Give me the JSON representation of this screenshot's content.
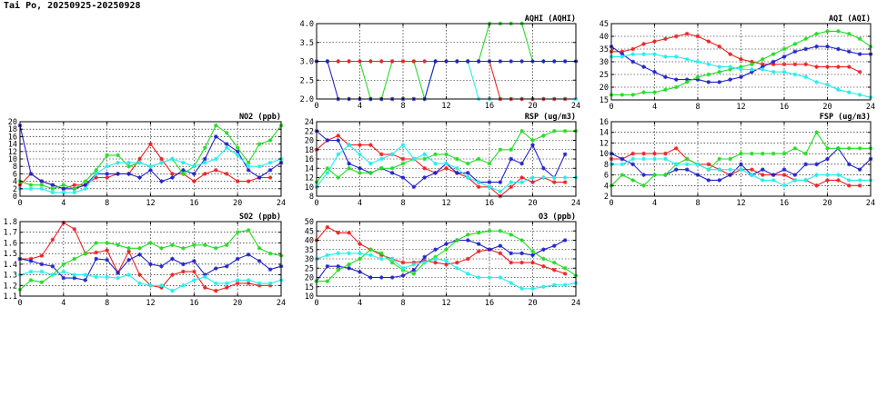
{
  "title": "Tai Po, 20250925-20250928",
  "colors": {
    "red": "#ee2222",
    "green": "#22dd22",
    "blue": "#2222cc",
    "cyan": "#22eeee"
  },
  "chart_data": [
    {
      "id": "no2",
      "type": "line",
      "title": "NO2 (ppb)",
      "xlim": [
        0,
        24
      ],
      "xticks": [
        0,
        4,
        8,
        12,
        16,
        20,
        24
      ],
      "ylim": [
        0,
        20
      ],
      "yticks": [
        0,
        2,
        4,
        6,
        8,
        10,
        12,
        14,
        16,
        18,
        20
      ],
      "series": [
        {
          "color": "red",
          "marker": "star",
          "values": [
            3,
            6,
            4,
            3,
            2,
            3,
            3,
            5,
            5,
            6,
            6,
            10,
            14,
            10,
            6,
            6,
            4,
            6,
            7,
            6,
            4,
            4,
            5,
            5
          ]
        },
        {
          "color": "blue",
          "marker": "star",
          "values": [
            19,
            6,
            4,
            3,
            2,
            2,
            3,
            6,
            6,
            6,
            6,
            5,
            7,
            4,
            5,
            7,
            6,
            10,
            16,
            14,
            12,
            7,
            5,
            7,
            9
          ]
        },
        {
          "color": "green",
          "marker": "star",
          "values": [
            4,
            3,
            3,
            2,
            3,
            2,
            4,
            7,
            11,
            11,
            8,
            9,
            8,
            9,
            10,
            6,
            8,
            13,
            19,
            17,
            13,
            9,
            14,
            15,
            19
          ]
        },
        {
          "color": "cyan",
          "marker": "star",
          "values": [
            2,
            2,
            2,
            1,
            1,
            1,
            2,
            6,
            8,
            9,
            9,
            9,
            8,
            9,
            10,
            9,
            8,
            9,
            10,
            13,
            11,
            8,
            8,
            9,
            10
          ]
        }
      ]
    },
    {
      "id": "so2",
      "type": "line",
      "title": "SO2 (ppb)",
      "xlim": [
        0,
        24
      ],
      "xticks": [
        0,
        4,
        8,
        12,
        16,
        20,
        24
      ],
      "ylim": [
        1.1,
        1.8
      ],
      "yticks": [
        1.1,
        1.2,
        1.3,
        1.4,
        1.5,
        1.6,
        1.7,
        1.8
      ],
      "series": [
        {
          "color": "red",
          "marker": "star",
          "values": [
            1.45,
            1.45,
            1.48,
            1.63,
            1.79,
            1.73,
            1.5,
            1.51,
            1.53,
            1.32,
            1.52,
            1.3,
            1.2,
            1.18,
            1.3,
            1.33,
            1.33,
            1.18,
            1.15,
            1.18,
            1.22,
            1.22,
            1.2,
            1.2
          ]
        },
        {
          "color": "blue",
          "marker": "star",
          "values": [
            1.45,
            1.43,
            1.4,
            1.38,
            1.27,
            1.27,
            1.25,
            1.45,
            1.44,
            1.32,
            1.44,
            1.49,
            1.4,
            1.38,
            1.45,
            1.4,
            1.43,
            1.3,
            1.36,
            1.38,
            1.45,
            1.49,
            1.43,
            1.35,
            1.38
          ]
        },
        {
          "color": "green",
          "marker": "star",
          "values": [
            1.16,
            1.25,
            1.23,
            1.3,
            1.4,
            1.45,
            1.5,
            1.6,
            1.6,
            1.58,
            1.55,
            1.55,
            1.6,
            1.55,
            1.58,
            1.55,
            1.58,
            1.58,
            1.55,
            1.58,
            1.7,
            1.72,
            1.55,
            1.5,
            1.48
          ]
        },
        {
          "color": "cyan",
          "marker": "star",
          "values": [
            1.3,
            1.33,
            1.33,
            1.3,
            1.33,
            1.3,
            1.3,
            1.28,
            1.28,
            1.27,
            1.3,
            1.22,
            1.2,
            1.2,
            1.15,
            1.2,
            1.25,
            1.28,
            1.22,
            1.22,
            1.25,
            1.25,
            1.22,
            1.22,
            1.25
          ]
        }
      ]
    },
    {
      "id": "aqhi",
      "type": "line",
      "title": "AQHI (AQHI)",
      "xlim": [
        0,
        24
      ],
      "xticks": [
        0,
        4,
        8,
        12,
        16,
        20,
        24
      ],
      "ylim": [
        2,
        4
      ],
      "yticks": [
        2.0,
        2.5,
        3.0,
        3.5,
        4.0
      ],
      "series": [
        {
          "color": "cyan",
          "marker": "star",
          "values": [
            3,
            3,
            3,
            3,
            3,
            3,
            3,
            3,
            3,
            3,
            3,
            3,
            3,
            3,
            3,
            2,
            2,
            2,
            2,
            2,
            2,
            2,
            2,
            2,
            2
          ]
        },
        {
          "color": "green",
          "marker": "star",
          "values": [
            3,
            3,
            3,
            3,
            3,
            2,
            2,
            3,
            3,
            3,
            2,
            3,
            3,
            3,
            3,
            3,
            4,
            4,
            4,
            4,
            3,
            3,
            3,
            3,
            3
          ]
        },
        {
          "color": "red",
          "marker": "star",
          "values": [
            3,
            3,
            3,
            3,
            3,
            3,
            3,
            3,
            3,
            3,
            3,
            3,
            3,
            3,
            3,
            3,
            3,
            2,
            2,
            2,
            2,
            2,
            2,
            2
          ]
        },
        {
          "color": "blue",
          "marker": "star",
          "values": [
            3,
            3,
            2,
            2,
            2,
            2,
            2,
            2,
            2,
            2,
            2,
            3,
            3,
            3,
            3,
            3,
            3,
            3,
            3,
            3,
            3,
            3,
            3,
            3,
            3
          ]
        }
      ]
    },
    {
      "id": "rsp",
      "type": "line",
      "title": "RSP (ug/m3)",
      "xlim": [
        0,
        24
      ],
      "xticks": [
        0,
        4,
        8,
        12,
        16,
        20,
        24
      ],
      "ylim": [
        8,
        24
      ],
      "yticks": [
        8,
        10,
        12,
        14,
        16,
        18,
        20,
        22,
        24
      ],
      "series": [
        {
          "color": "red",
          "marker": "star",
          "values": [
            18,
            20,
            21,
            19,
            19,
            19,
            17,
            17,
            16,
            16,
            14,
            13,
            14,
            13,
            12,
            10,
            10,
            8,
            10,
            12,
            11,
            12,
            11,
            11
          ]
        },
        {
          "color": "blue",
          "marker": "star",
          "values": [
            22,
            20,
            20,
            15,
            14,
            13,
            14,
            13,
            12,
            10,
            12,
            13,
            15,
            13,
            13,
            11,
            11,
            11,
            16,
            15,
            19,
            14,
            12,
            17
          ]
        },
        {
          "color": "green",
          "marker": "star",
          "values": [
            11,
            14,
            12,
            14,
            13,
            13,
            14,
            14,
            15,
            16,
            16,
            17,
            17,
            16,
            15,
            16,
            15,
            18,
            18,
            22,
            20,
            21,
            22,
            22,
            22
          ]
        },
        {
          "color": "cyan",
          "marker": "star",
          "values": [
            10,
            13,
            17,
            19,
            17,
            15,
            16,
            17,
            19,
            16,
            17,
            15,
            15,
            14,
            12,
            11,
            10,
            9,
            11,
            11,
            12,
            12,
            12,
            12,
            12
          ]
        }
      ]
    },
    {
      "id": "o3",
      "type": "line",
      "title": "O3 (ppb)",
      "xlim": [
        0,
        24
      ],
      "xticks": [
        0,
        4,
        8,
        12,
        16,
        20,
        24
      ],
      "ylim": [
        10,
        50
      ],
      "yticks": [
        10,
        15,
        20,
        25,
        30,
        35,
        40,
        45,
        50
      ],
      "series": [
        {
          "color": "red",
          "marker": "star",
          "values": [
            40,
            47,
            44,
            44,
            38,
            35,
            32,
            30,
            28,
            28,
            29,
            28,
            27,
            28,
            30,
            34,
            35,
            33,
            28,
            28,
            28,
            26,
            24,
            22
          ]
        },
        {
          "color": "blue",
          "marker": "star",
          "values": [
            18,
            26,
            26,
            25,
            23,
            20,
            20,
            20,
            21,
            24,
            31,
            35,
            38,
            40,
            40,
            38,
            35,
            37,
            33,
            33,
            32,
            35,
            37,
            40
          ]
        },
        {
          "color": "green",
          "marker": "star",
          "values": [
            18,
            18,
            24,
            27,
            30,
            35,
            33,
            28,
            24,
            22,
            28,
            31,
            35,
            40,
            43,
            44,
            45,
            45,
            43,
            40,
            34,
            30,
            28,
            25,
            21
          ]
        },
        {
          "color": "cyan",
          "marker": "star",
          "values": [
            30,
            32,
            33,
            33,
            33,
            32,
            30,
            30,
            25,
            27,
            28,
            30,
            29,
            25,
            22,
            20,
            20,
            20,
            17,
            14,
            14,
            15,
            16,
            16,
            17
          ]
        }
      ]
    },
    {
      "id": "aqi",
      "type": "line",
      "title": "AQI (AQI)",
      "xlim": [
        0,
        24
      ],
      "xticks": [
        0,
        4,
        8,
        12,
        16,
        20,
        24
      ],
      "ylim": [
        15,
        45
      ],
      "yticks": [
        15,
        20,
        25,
        30,
        35,
        40,
        45
      ],
      "series": [
        {
          "color": "red",
          "marker": "star",
          "values": [
            34,
            34,
            35,
            37,
            38,
            39,
            40,
            41,
            40,
            38,
            36,
            33,
            31,
            30,
            29,
            29,
            29,
            29,
            29,
            28,
            28,
            28,
            28,
            26
          ]
        },
        {
          "color": "blue",
          "marker": "star",
          "values": [
            36,
            33,
            30,
            28,
            26,
            24,
            23,
            23,
            23,
            22,
            22,
            23,
            24,
            26,
            28,
            30,
            32,
            34,
            35,
            36,
            36,
            35,
            34,
            33,
            33
          ]
        },
        {
          "color": "green",
          "marker": "star",
          "values": [
            17,
            17,
            17,
            18,
            18,
            19,
            20,
            22,
            24,
            25,
            26,
            27,
            28,
            29,
            31,
            33,
            35,
            37,
            39,
            41,
            42,
            42,
            41,
            39,
            36
          ]
        },
        {
          "color": "cyan",
          "marker": "star",
          "values": [
            32,
            32,
            33,
            33,
            33,
            32,
            32,
            31,
            30,
            29,
            28,
            28,
            27,
            27,
            27,
            26,
            26,
            25,
            24,
            22,
            21,
            19,
            18,
            17,
            16
          ]
        }
      ]
    },
    {
      "id": "fsp",
      "type": "line",
      "title": "FSP (ug/m3)",
      "xlim": [
        0,
        24
      ],
      "xticks": [
        0,
        4,
        8,
        12,
        16,
        20,
        24
      ],
      "ylim": [
        2,
        16
      ],
      "yticks": [
        2,
        4,
        6,
        8,
        10,
        12,
        14,
        16
      ],
      "series": [
        {
          "color": "red",
          "marker": "star",
          "values": [
            9,
            9,
            10,
            10,
            10,
            10,
            11,
            9,
            8,
            8,
            7,
            6,
            7,
            7,
            6,
            6,
            6,
            5,
            5,
            4,
            5,
            5,
            4,
            4
          ]
        },
        {
          "color": "blue",
          "marker": "star",
          "values": [
            10,
            9,
            8,
            6,
            6,
            6,
            7,
            7,
            6,
            5,
            5,
            6,
            8,
            6,
            7,
            6,
            7,
            6,
            8,
            8,
            9,
            11,
            8,
            7,
            9
          ]
        },
        {
          "color": "green",
          "marker": "star",
          "values": [
            4,
            6,
            5,
            4,
            6,
            6,
            8,
            9,
            8,
            7,
            9,
            9,
            10,
            10,
            10,
            10,
            10,
            11,
            10,
            14,
            11,
            11,
            11,
            11,
            11
          ]
        },
        {
          "color": "cyan",
          "marker": "star",
          "values": [
            8,
            8,
            9,
            9,
            9,
            9,
            8,
            8,
            8,
            7,
            7,
            7,
            7,
            6,
            5,
            5,
            4,
            5,
            5,
            6,
            6,
            6,
            5,
            5,
            5
          ]
        }
      ]
    }
  ]
}
